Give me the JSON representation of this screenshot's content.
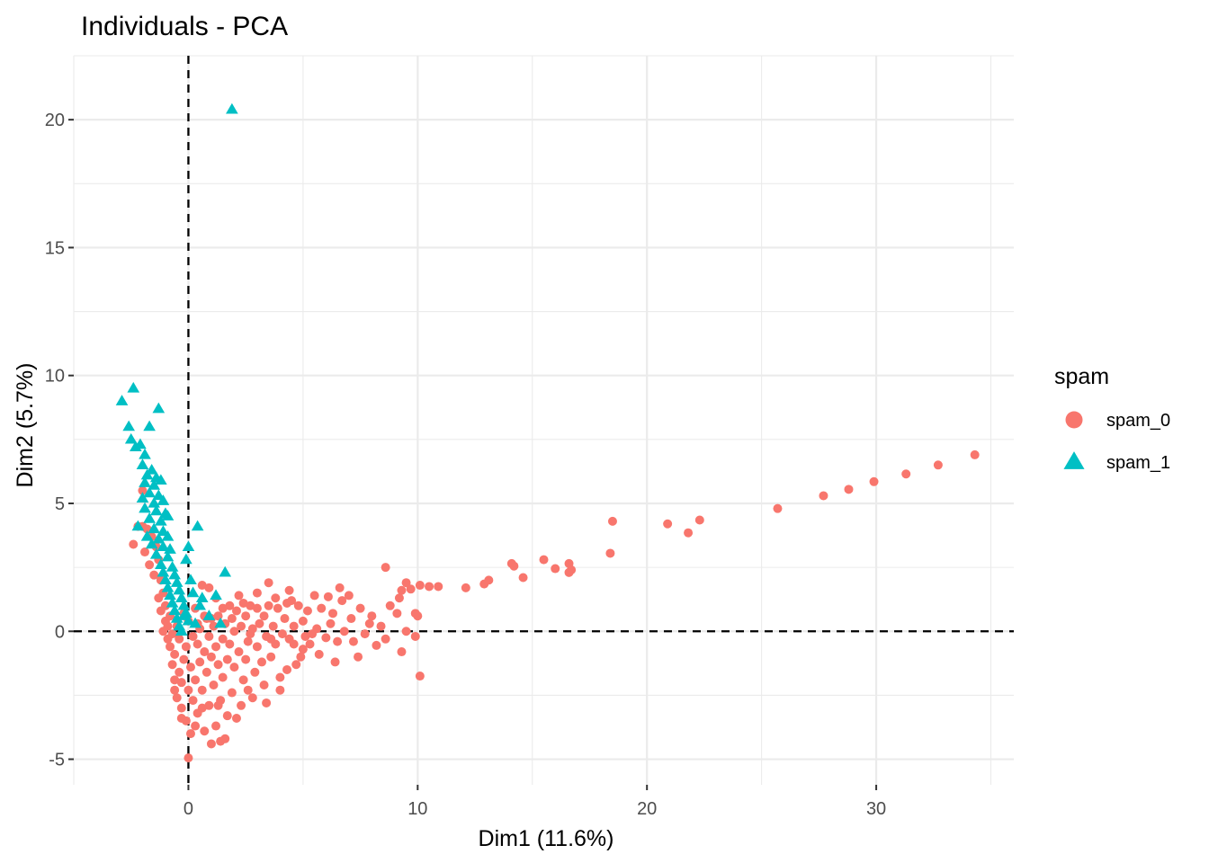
{
  "chart_data": {
    "type": "scatter",
    "title": "Individuals - PCA",
    "xlabel": "Dim1 (11.6%)",
    "ylabel": "Dim2 (5.7%)",
    "xlim": [
      -5,
      36
    ],
    "ylim": [
      -6,
      22.5
    ],
    "xticks": [
      0,
      10,
      20,
      30
    ],
    "yticks": [
      -5,
      0,
      5,
      10,
      15,
      20
    ],
    "grid": true,
    "reference_lines": {
      "x": 0,
      "y": 0,
      "style": "dashed"
    },
    "legend": {
      "title": "spam",
      "position": "right"
    },
    "series": [
      {
        "name": "spam_0",
        "marker": "circle",
        "color": "#F8766D",
        "points": [
          [
            34.3,
            6.9
          ],
          [
            32.7,
            6.5
          ],
          [
            31.3,
            6.15
          ],
          [
            29.9,
            5.85
          ],
          [
            28.8,
            5.55
          ],
          [
            27.7,
            5.3
          ],
          [
            25.7,
            4.8
          ],
          [
            22.3,
            4.35
          ],
          [
            21.8,
            3.85
          ],
          [
            20.9,
            4.2
          ],
          [
            18.5,
            4.3
          ],
          [
            18.4,
            3.05
          ],
          [
            16.7,
            2.4
          ],
          [
            16.6,
            2.65
          ],
          [
            16.6,
            2.3
          ],
          [
            16.0,
            2.45
          ],
          [
            15.5,
            2.8
          ],
          [
            14.6,
            2.1
          ],
          [
            14.2,
            2.55
          ],
          [
            14.1,
            2.65
          ],
          [
            13.1,
            2.0
          ],
          [
            12.9,
            1.85
          ],
          [
            12.1,
            1.7
          ],
          [
            10.9,
            1.75
          ],
          [
            10.5,
            1.75
          ],
          [
            10.1,
            1.8
          ],
          [
            9.7,
            1.65
          ],
          [
            9.5,
            1.9
          ],
          [
            9.3,
            1.6
          ],
          [
            9.2,
            1.3
          ],
          [
            8.6,
            2.5
          ],
          [
            10.1,
            -1.75
          ],
          [
            10.0,
            0.6
          ],
          [
            9.9,
            -0.2
          ],
          [
            9.9,
            0.7
          ],
          [
            9.5,
            0.0
          ],
          [
            9.3,
            -0.8
          ],
          [
            9.1,
            0.7
          ],
          [
            8.8,
            1.0
          ],
          [
            8.6,
            -0.3
          ],
          [
            8.4,
            0.2
          ],
          [
            8.2,
            -0.55
          ],
          [
            7.9,
            0.3
          ],
          [
            7.7,
            -0.1
          ],
          [
            7.5,
            0.9
          ],
          [
            7.4,
            -1.0
          ],
          [
            7.2,
            -0.4
          ],
          [
            7.0,
            1.4
          ],
          [
            6.8,
            0.0
          ],
          [
            6.7,
            1.2
          ],
          [
            6.6,
            1.7
          ],
          [
            6.5,
            -0.4
          ],
          [
            6.3,
            0.7
          ],
          [
            6.1,
            1.35
          ],
          [
            6.0,
            -0.25
          ],
          [
            5.8,
            0.9
          ],
          [
            5.6,
            0.1
          ],
          [
            5.5,
            1.4
          ],
          [
            5.3,
            -0.5
          ],
          [
            5.2,
            0.8
          ],
          [
            5.1,
            -0.2
          ],
          [
            5.0,
            0.4
          ],
          [
            5.0,
            -0.7
          ],
          [
            4.9,
            -1.0
          ],
          [
            4.8,
            1.0
          ],
          [
            4.7,
            -1.3
          ],
          [
            4.6,
            0.2
          ],
          [
            4.5,
            1.2
          ],
          [
            4.4,
            -0.3
          ],
          [
            4.3,
            -1.5
          ],
          [
            4.3,
            1.1
          ],
          [
            4.2,
            0.5
          ],
          [
            4.1,
            -0.1
          ],
          [
            4.0,
            -1.8
          ],
          [
            3.9,
            0.9
          ],
          [
            3.8,
            -0.5
          ],
          [
            3.7,
            0.2
          ],
          [
            3.6,
            -1.0
          ],
          [
            3.5,
            1.0
          ],
          [
            3.4,
            -0.2
          ],
          [
            3.3,
            0.6
          ],
          [
            3.3,
            -2.1
          ],
          [
            3.2,
            -1.2
          ],
          [
            3.1,
            0.3
          ],
          [
            3.0,
            -0.6
          ],
          [
            3.0,
            0.9
          ],
          [
            2.9,
            -1.6
          ],
          [
            2.8,
            0.1
          ],
          [
            2.8,
            -2.6
          ],
          [
            2.7,
            1.0
          ],
          [
            2.6,
            -0.4
          ],
          [
            2.5,
            -1.1
          ],
          [
            2.5,
            0.6
          ],
          [
            2.4,
            -1.9
          ],
          [
            2.3,
            0.2
          ],
          [
            2.3,
            -2.9
          ],
          [
            2.2,
            -0.8
          ],
          [
            2.1,
            0.8
          ],
          [
            2.0,
            -1.4
          ],
          [
            2.0,
            0.0
          ],
          [
            1.9,
            -2.4
          ],
          [
            1.8,
            -0.5
          ],
          [
            1.8,
            1.0
          ],
          [
            1.7,
            -3.3
          ],
          [
            1.7,
            -1.1
          ],
          [
            1.6,
            0.3
          ],
          [
            1.5,
            -1.8
          ],
          [
            1.5,
            -0.3
          ],
          [
            1.4,
            -4.3
          ],
          [
            1.4,
            -2.7
          ],
          [
            1.3,
            0.6
          ],
          [
            1.3,
            -1.3
          ],
          [
            1.2,
            -3.7
          ],
          [
            1.2,
            -0.6
          ],
          [
            1.1,
            0.2
          ],
          [
            1.1,
            -2.1
          ],
          [
            1.0,
            -1.0
          ],
          [
            1.0,
            -4.4
          ],
          [
            0.9,
            -0.2
          ],
          [
            0.9,
            -2.9
          ],
          [
            0.8,
            0.5
          ],
          [
            0.8,
            -1.6
          ],
          [
            0.7,
            -3.9
          ],
          [
            0.7,
            -0.8
          ],
          [
            0.6,
            1.8
          ],
          [
            0.6,
            -2.3
          ],
          [
            0.5,
            0.1
          ],
          [
            0.5,
            -1.2
          ],
          [
            0.4,
            -3.2
          ],
          [
            0.4,
            -0.5
          ],
          [
            0.3,
            0.9
          ],
          [
            0.3,
            -1.9
          ],
          [
            0.2,
            -2.7
          ],
          [
            0.2,
            -0.2
          ],
          [
            0.1,
            -4.0
          ],
          [
            0.1,
            -1.4
          ],
          [
            0.0,
            0.4
          ],
          [
            0.0,
            -4.95
          ],
          [
            0.0,
            -2.3
          ],
          [
            -0.1,
            -0.6
          ],
          [
            -0.1,
            -3.5
          ],
          [
            -0.2,
            -1.1
          ],
          [
            -0.2,
            0.7
          ],
          [
            -0.3,
            -2.0
          ],
          [
            -0.3,
            -3.0
          ],
          [
            -0.4,
            -0.3
          ],
          [
            -0.4,
            -1.6
          ],
          [
            -0.5,
            0.2
          ],
          [
            -0.5,
            -2.6
          ],
          [
            -0.6,
            -0.9
          ],
          [
            -0.6,
            -1.9
          ],
          [
            -0.7,
            -0.1
          ],
          [
            -0.7,
            -1.3
          ],
          [
            -0.8,
            0.6
          ],
          [
            -0.8,
            -0.6
          ],
          [
            -0.9,
            0.2
          ],
          [
            -0.9,
            -0.3
          ],
          [
            -1.0,
            1.0
          ],
          [
            -1.0,
            0.4
          ],
          [
            -1.1,
            1.5
          ],
          [
            -1.1,
            0.0
          ],
          [
            -1.2,
            2.0
          ],
          [
            -1.2,
            0.8
          ],
          [
            -1.3,
            2.8
          ],
          [
            -1.3,
            1.3
          ],
          [
            -1.4,
            3.3
          ],
          [
            -1.5,
            2.2
          ],
          [
            -1.6,
            3.7
          ],
          [
            -1.7,
            2.6
          ],
          [
            -1.8,
            4.0
          ],
          [
            -1.9,
            3.1
          ],
          [
            -2.0,
            4.1
          ],
          [
            -2.0,
            5.5
          ],
          [
            -2.2,
            4.1
          ],
          [
            -2.4,
            3.4
          ],
          [
            0.4,
            0.3
          ],
          [
            0.7,
            0.6
          ],
          [
            1.0,
            0.5
          ],
          [
            1.5,
            0.9
          ],
          [
            2.2,
            1.4
          ],
          [
            3.0,
            1.5
          ],
          [
            3.5,
            1.9
          ],
          [
            2.4,
            1.1
          ],
          [
            3.8,
            1.3
          ],
          [
            4.4,
            1.6
          ],
          [
            1.2,
            1.3
          ],
          [
            0.9,
            1.7
          ],
          [
            1.9,
            0.5
          ],
          [
            2.7,
            -0.1
          ],
          [
            3.6,
            -0.3
          ],
          [
            4.6,
            -0.5
          ],
          [
            5.4,
            -0.1
          ],
          [
            6.2,
            0.3
          ],
          [
            7.1,
            0.5
          ],
          [
            8.0,
            0.6
          ],
          [
            5.7,
            -0.9
          ],
          [
            6.4,
            -1.2
          ],
          [
            4.0,
            -2.3
          ],
          [
            3.4,
            -2.8
          ],
          [
            2.1,
            -3.4
          ],
          [
            1.6,
            -4.2
          ],
          [
            0.3,
            -3.7
          ],
          [
            -0.3,
            -3.4
          ],
          [
            2.6,
            -2.3
          ],
          [
            1.3,
            -2.9
          ],
          [
            0.6,
            -3.0
          ],
          [
            -0.6,
            -2.3
          ]
        ]
      },
      {
        "name": "spam_1",
        "marker": "triangle",
        "color": "#00BFC4",
        "points": [
          [
            1.9,
            20.4
          ],
          [
            -2.4,
            9.5
          ],
          [
            -2.9,
            9.0
          ],
          [
            -1.3,
            8.7
          ],
          [
            -1.7,
            8.0
          ],
          [
            -2.6,
            8.0
          ],
          [
            -2.5,
            7.5
          ],
          [
            -2.3,
            7.2
          ],
          [
            -2.1,
            7.3
          ],
          [
            -1.9,
            6.9
          ],
          [
            -2.0,
            6.5
          ],
          [
            -1.6,
            6.3
          ],
          [
            -1.8,
            6.1
          ],
          [
            -1.4,
            6.0
          ],
          [
            -1.9,
            5.8
          ],
          [
            -1.5,
            5.7
          ],
          [
            -1.2,
            5.9
          ],
          [
            -1.7,
            5.4
          ],
          [
            -1.3,
            5.3
          ],
          [
            -2.0,
            5.2
          ],
          [
            -1.5,
            5.0
          ],
          [
            -1.1,
            5.1
          ],
          [
            -1.9,
            4.8
          ],
          [
            -1.4,
            4.7
          ],
          [
            -1.0,
            4.6
          ],
          [
            -1.7,
            4.4
          ],
          [
            -1.2,
            4.3
          ],
          [
            -0.9,
            4.5
          ],
          [
            -2.2,
            4.1
          ],
          [
            -1.5,
            4.0
          ],
          [
            -1.1,
            3.9
          ],
          [
            -1.8,
            3.7
          ],
          [
            -1.3,
            3.6
          ],
          [
            -0.9,
            3.7
          ],
          [
            -1.6,
            3.4
          ],
          [
            -1.1,
            3.3
          ],
          [
            -0.8,
            3.2
          ],
          [
            -1.4,
            3.0
          ],
          [
            -0.9,
            2.9
          ],
          [
            -1.2,
            2.6
          ],
          [
            -0.7,
            2.5
          ],
          [
            -1.1,
            2.3
          ],
          [
            -0.6,
            2.2
          ],
          [
            -1.0,
            2.0
          ],
          [
            -0.5,
            1.9
          ],
          [
            -0.9,
            1.7
          ],
          [
            -0.4,
            1.6
          ],
          [
            -0.8,
            1.4
          ],
          [
            -0.3,
            1.3
          ],
          [
            -0.7,
            1.1
          ],
          [
            -0.2,
            1.0
          ],
          [
            -0.6,
            0.8
          ],
          [
            -0.1,
            0.7
          ],
          [
            -0.5,
            0.5
          ],
          [
            0.0,
            0.4
          ],
          [
            -0.4,
            0.2
          ],
          [
            0.4,
            4.1
          ],
          [
            0.0,
            3.3
          ],
          [
            -0.1,
            2.8
          ],
          [
            0.1,
            2.0
          ],
          [
            1.6,
            2.3
          ],
          [
            1.2,
            1.4
          ],
          [
            0.5,
            1.0
          ],
          [
            0.9,
            0.6
          ],
          [
            1.4,
            0.3
          ],
          [
            0.3,
            0.3
          ],
          [
            -0.3,
            0.0
          ],
          [
            -0.2,
            0.6
          ],
          [
            0.2,
            1.5
          ],
          [
            0.6,
            1.3
          ]
        ]
      }
    ]
  }
}
